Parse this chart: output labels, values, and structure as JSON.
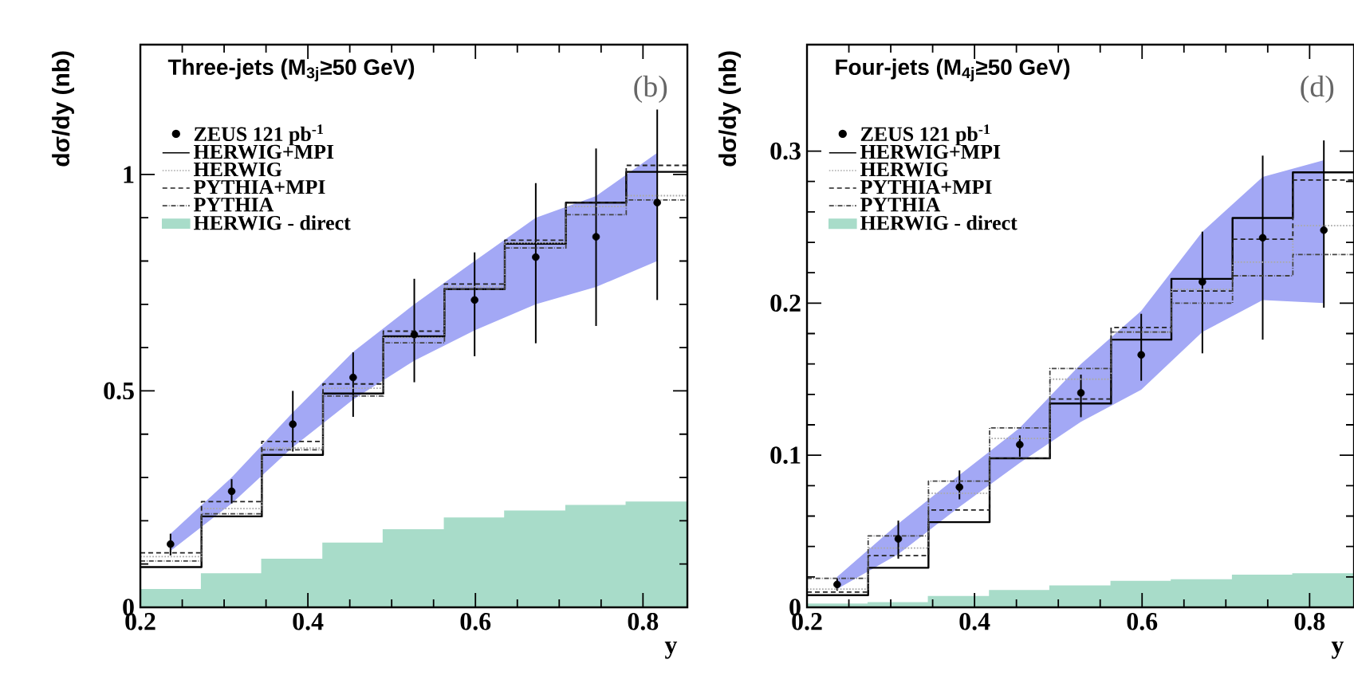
{
  "chart_data": [
    {
      "type": "histogram",
      "title": "Three-jets (M$_{3j}$≥50 GeV)",
      "xlabel": "y",
      "ylabel": "dσ/dy (nb)",
      "annotations": [
        "(b)"
      ],
      "bins": [
        0.2,
        0.273,
        0.345,
        0.418,
        0.49,
        0.563,
        0.635,
        0.708,
        0.78,
        0.853
      ],
      "xlim": [
        0.2,
        0.853
      ],
      "ylim": [
        0,
        1.3
      ],
      "xticks": [
        0.2,
        0.4,
        0.6,
        0.8
      ],
      "yticks": [
        0,
        0.5,
        1
      ],
      "legend": "top left",
      "series": [
        {
          "type": "area",
          "color": "#a3a8f5",
          "x": [
            0.236,
            0.309,
            0.382,
            0.454,
            0.527,
            0.599,
            0.672,
            0.744,
            0.817
          ],
          "values": [
            null,
            null,
            null,
            null,
            null,
            null,
            null,
            null,
            null
          ],
          "lower": [
            0.13,
            0.24,
            0.37,
            0.48,
            0.57,
            0.64,
            0.7,
            0.74,
            0.8
          ],
          "upper": [
            0.17,
            0.3,
            0.45,
            0.59,
            0.7,
            0.8,
            0.9,
            0.95,
            1.05
          ]
        },
        {
          "type": "scatter",
          "name": "ZEUS 121 pb$^{-1}$",
          "color": "#000000",
          "x": [
            0.236,
            0.309,
            0.382,
            0.454,
            0.527,
            0.599,
            0.672,
            0.744,
            0.817
          ],
          "values": [
            0.146,
            0.268,
            0.423,
            0.531,
            0.63,
            0.71,
            0.809,
            0.856,
            0.935
          ],
          "errors": [
            [
              0.12,
              0.17
            ],
            [
              0.24,
              0.296
            ],
            [
              0.36,
              0.5
            ],
            [
              0.44,
              0.589
            ],
            [
              0.52,
              0.759
            ],
            [
              0.58,
              0.82
            ],
            [
              0.61,
              0.98
            ],
            [
              0.65,
              1.06
            ],
            [
              0.71,
              1.15
            ]
          ]
        },
        {
          "name": "HERWIG+MPI",
          "color": "#000000",
          "line_style": "solid",
          "values": [
            0.093,
            0.21,
            0.352,
            0.494,
            0.626,
            0.735,
            0.84,
            0.935,
            1.006
          ]
        },
        {
          "name": "HERWIG",
          "color": "#aaaaaa",
          "line_style": "dotted",
          "values": [
            0.117,
            0.228,
            0.368,
            0.506,
            0.623,
            0.741,
            0.842,
            0.926,
            0.951
          ]
        },
        {
          "name": "PYTHIA+MPI",
          "color": "#222222",
          "line_style": "dashed",
          "values": [
            0.126,
            0.244,
            0.383,
            0.516,
            0.638,
            0.747,
            0.848,
            0.935,
            1.021
          ]
        },
        {
          "name": "PYTHIA",
          "color": "#444444",
          "line_style": "dashdot",
          "values": [
            0.107,
            0.216,
            0.364,
            0.488,
            0.611,
            0.735,
            0.83,
            0.907,
            0.941
          ]
        },
        {
          "type": "histogram",
          "name": "HERWIG - direct",
          "color": "#a8dcc9",
          "values": [
            0.041,
            0.077,
            0.111,
            0.148,
            0.179,
            0.206,
            0.222,
            0.235,
            0.243
          ]
        }
      ]
    },
    {
      "type": "histogram",
      "title": "Four-jets (M$_{4j}$≥50 GeV)",
      "xlabel": "y",
      "ylabel": "dσ/dy (nb)",
      "annotations": [
        "(d)"
      ],
      "bins": [
        0.2,
        0.273,
        0.345,
        0.418,
        0.49,
        0.563,
        0.635,
        0.708,
        0.78,
        0.853
      ],
      "xlim": [
        0.2,
        0.853
      ],
      "ylim": [
        0,
        0.37
      ],
      "xticks": [
        0.2,
        0.4,
        0.6,
        0.8
      ],
      "yticks": [
        0,
        0.1,
        0.2,
        0.3
      ],
      "legend": "top left",
      "series": [
        {
          "type": "area",
          "color": "#a3a8f5",
          "x": [
            0.236,
            0.309,
            0.382,
            0.454,
            0.527,
            0.599,
            0.672,
            0.744,
            0.817
          ],
          "values": [
            null,
            null,
            null,
            null,
            null,
            null,
            null,
            null,
            null
          ],
          "lower": [
            0.012,
            0.035,
            0.066,
            0.095,
            0.122,
            0.143,
            0.181,
            0.202,
            0.2
          ],
          "upper": [
            0.02,
            0.055,
            0.087,
            0.118,
            0.16,
            0.195,
            0.247,
            0.283,
            0.294
          ]
        },
        {
          "type": "scatter",
          "name": "ZEUS 121 pb$^{-1}$",
          "color": "#000000",
          "x": [
            0.236,
            0.309,
            0.382,
            0.454,
            0.527,
            0.599,
            0.672,
            0.744,
            0.817
          ],
          "values": [
            0.015,
            0.045,
            0.079,
            0.107,
            0.141,
            0.166,
            0.214,
            0.243,
            0.248
          ],
          "errors": [
            [
              0.011,
              0.019
            ],
            [
              0.032,
              0.057
            ],
            [
              0.071,
              0.09
            ],
            [
              0.099,
              0.113
            ],
            [
              0.125,
              0.153
            ],
            [
              0.149,
              0.193
            ],
            [
              0.167,
              0.247
            ],
            [
              0.176,
              0.297
            ],
            [
              0.197,
              0.307
            ]
          ]
        },
        {
          "name": "HERWIG+MPI",
          "color": "#000000",
          "line_style": "solid",
          "values": [
            0.008,
            0.026,
            0.056,
            0.098,
            0.134,
            0.176,
            0.216,
            0.256,
            0.286
          ]
        },
        {
          "name": "HERWIG",
          "color": "#aaaaaa",
          "line_style": "dotted",
          "values": [
            0.012,
            0.039,
            0.075,
            0.111,
            0.15,
            0.181,
            0.209,
            0.227,
            0.251
          ]
        },
        {
          "name": "PYTHIA+MPI",
          "color": "#222222",
          "line_style": "dashed",
          "values": [
            0.01,
            0.034,
            0.064,
            0.098,
            0.137,
            0.184,
            0.208,
            0.242,
            0.281
          ]
        },
        {
          "name": "PYTHIA",
          "color": "#444444",
          "line_style": "dashdot",
          "values": [
            0.019,
            0.047,
            0.083,
            0.118,
            0.157,
            0.181,
            0.2,
            0.218,
            0.232
          ]
        },
        {
          "type": "histogram",
          "name": "HERWIG - direct",
          "color": "#a8dcc9",
          "values": [
            0.002,
            0.003,
            0.007,
            0.011,
            0.014,
            0.017,
            0.018,
            0.021,
            0.022
          ]
        }
      ]
    }
  ]
}
